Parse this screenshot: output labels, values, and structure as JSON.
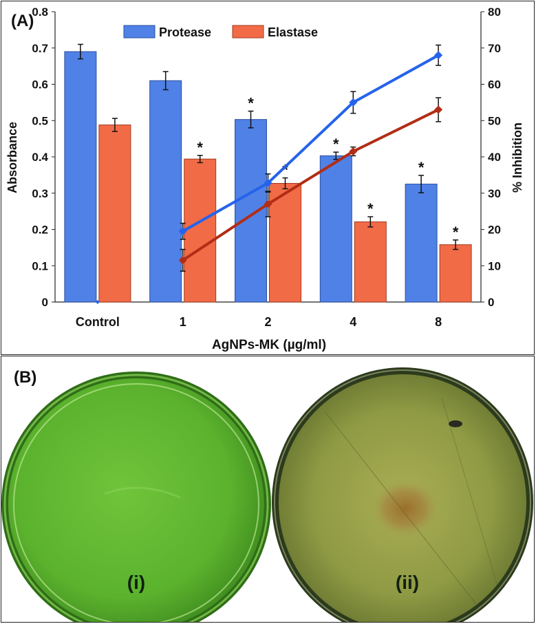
{
  "panel_a": {
    "label": "(A)"
  },
  "panel_b": {
    "label": "(B)",
    "dish_labels": [
      "(i)",
      "(ii)"
    ]
  },
  "chart_data": {
    "type": "bar",
    "categories": [
      "Control",
      "1",
      "2",
      "4",
      "8"
    ],
    "xlabel": "AgNPs-MK (µg/ml)",
    "ylabel": "Absorbance",
    "y2label": "% Inhibition",
    "ylim": [
      0,
      0.8
    ],
    "y2lim": [
      0,
      80
    ],
    "yticks": [
      "0",
      "0.1",
      "0.2",
      "0.3",
      "0.4",
      "0.5",
      "0.6",
      "0.7",
      "0.8"
    ],
    "y2ticks": [
      "0",
      "10",
      "20",
      "30",
      "40",
      "50",
      "60",
      "70",
      "80"
    ],
    "legend_position": "top",
    "grid": false,
    "series": [
      {
        "name": "Protease",
        "color": "#4f81e6",
        "values": [
          0.69,
          0.61,
          0.503,
          0.403,
          0.325
        ],
        "errors": [
          0.02,
          0.025,
          0.023,
          0.01,
          0.024
        ],
        "significant": [
          false,
          false,
          true,
          true,
          true
        ]
      },
      {
        "name": "Elastase",
        "color": "#f26b47",
        "values": [
          0.488,
          0.394,
          0.327,
          0.221,
          0.158
        ],
        "errors": [
          0.018,
          0.01,
          0.015,
          0.014,
          0.013
        ],
        "significant": [
          false,
          true,
          true,
          true,
          true
        ]
      }
    ],
    "lines": [
      {
        "axis": "y2",
        "color": "#2563eb",
        "marker": "diamond",
        "values": [
          0,
          19.5,
          32.8,
          55,
          68
        ],
        "errors": [
          0,
          2.2,
          2.5,
          3,
          2.8
        ]
      },
      {
        "axis": "y2",
        "color": "#b22d15",
        "marker": "diamond",
        "values": [
          null,
          11.5,
          27,
          41.5,
          53
        ],
        "errors": [
          0,
          3,
          3.5,
          1.2,
          3.3
        ]
      }
    ],
    "significance_marker": "*"
  }
}
